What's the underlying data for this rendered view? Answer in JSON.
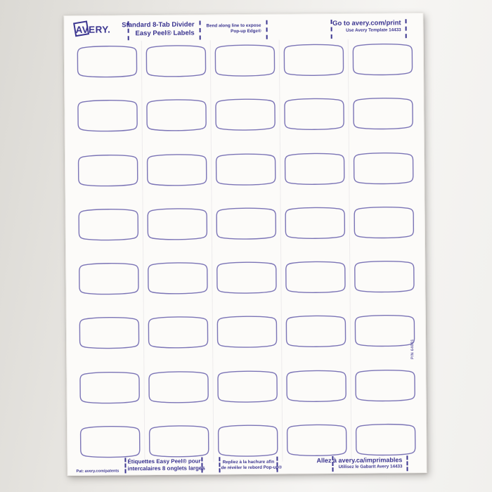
{
  "colors": {
    "accent": "#3b3590",
    "label_outline": "#7b74b6",
    "sheet": "#fcfbf9"
  },
  "brand": {
    "name": "AVERY."
  },
  "header": {
    "product_line1": "Standard 8-Tab Divider",
    "product_line2": "Easy Peel® Labels",
    "bend_line1": "Bend along line to expose",
    "bend_line2": "Pop-up Edge®",
    "web_line1": "Go to avery.com/print",
    "web_line2": "Use Avery Template 14433"
  },
  "footer": {
    "patent": "Pat: avery.com/patents",
    "product_fr_line1": "Étiquettes Easy Peel® pour",
    "product_fr_line2": "intercalaires 8 onglets larges",
    "bend_fr_line1": "Repliez à la hachure afin",
    "bend_fr_line2": "de révéler le rebord Pop-up®",
    "web_fr_line1": "Allez à avery.ca/imprimables",
    "web_fr_line2": "Utilisez le Gabarit Avery 14433"
  },
  "side": {
    "part_number": "P/N 64081"
  },
  "grid": {
    "rows": 8,
    "columns": 5
  }
}
